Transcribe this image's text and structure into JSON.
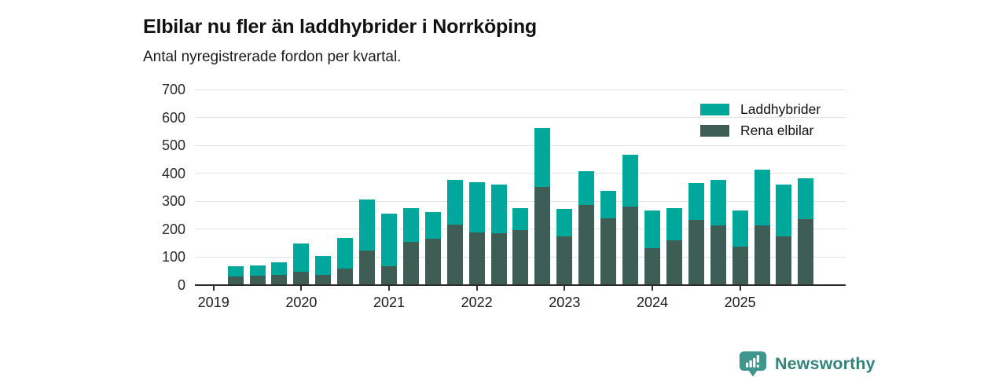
{
  "header": {
    "title": "Elbilar nu fler än laddhybrider i Norrköping",
    "subtitle": "Antal nyregistrerade fordon per kvartal."
  },
  "chart_data": {
    "type": "bar",
    "stacked": true,
    "title": "Elbilar nu fler än laddhybrider i Norrköping",
    "subtitle": "Antal nyregistrerade fordon per kvartal.",
    "ylabel": "",
    "xlabel": "",
    "ylim": [
      0,
      700
    ],
    "yticks": [
      0,
      100,
      200,
      300,
      400,
      500,
      600,
      700
    ],
    "grid": "horizontal",
    "legend_position": "top-right",
    "categories": [
      "2019 Q2",
      "2019 Q3",
      "2019 Q4",
      "2020 Q1",
      "2020 Q2",
      "2020 Q3",
      "2020 Q4",
      "2021 Q1",
      "2021 Q2",
      "2021 Q3",
      "2021 Q4",
      "2022 Q1",
      "2022 Q2",
      "2022 Q3",
      "2022 Q4",
      "2023 Q1",
      "2023 Q2",
      "2023 Q3",
      "2023 Q4",
      "2024 Q1",
      "2024 Q2",
      "2024 Q3",
      "2024 Q4",
      "2025 Q1",
      "2025 Q2",
      "2025 Q3",
      "2025 Q4"
    ],
    "xticks_years": [
      "2019",
      "2020",
      "2021",
      "2022",
      "2023",
      "2024",
      "2025"
    ],
    "series": [
      {
        "name": "Laddhybrider",
        "color": "#00a89b",
        "values": [
          38,
          38,
          47,
          101,
          67,
          108,
          182,
          189,
          121,
          98,
          162,
          180,
          172,
          78,
          212,
          98,
          121,
          101,
          186,
          135,
          115,
          133,
          161,
          127,
          199,
          185,
          146
        ]
      },
      {
        "name": "Rena elbilar",
        "color": "#3e5d55",
        "values": [
          27,
          30,
          33,
          46,
          35,
          57,
          122,
          64,
          151,
          162,
          213,
          185,
          184,
          195,
          348,
          172,
          284,
          235,
          278,
          130,
          158,
          231,
          212,
          136,
          211,
          171,
          234
        ]
      }
    ],
    "stack_bottom_series": "Rena elbilar",
    "colors": {
      "grid": "#e2e2e2",
      "axis": "#2d2d2d",
      "tick_label": "#1a1a1a"
    }
  },
  "footer": {
    "brand_name": "Newsworthy",
    "logo_color": "#3f968c",
    "text_color": "#35827b"
  }
}
